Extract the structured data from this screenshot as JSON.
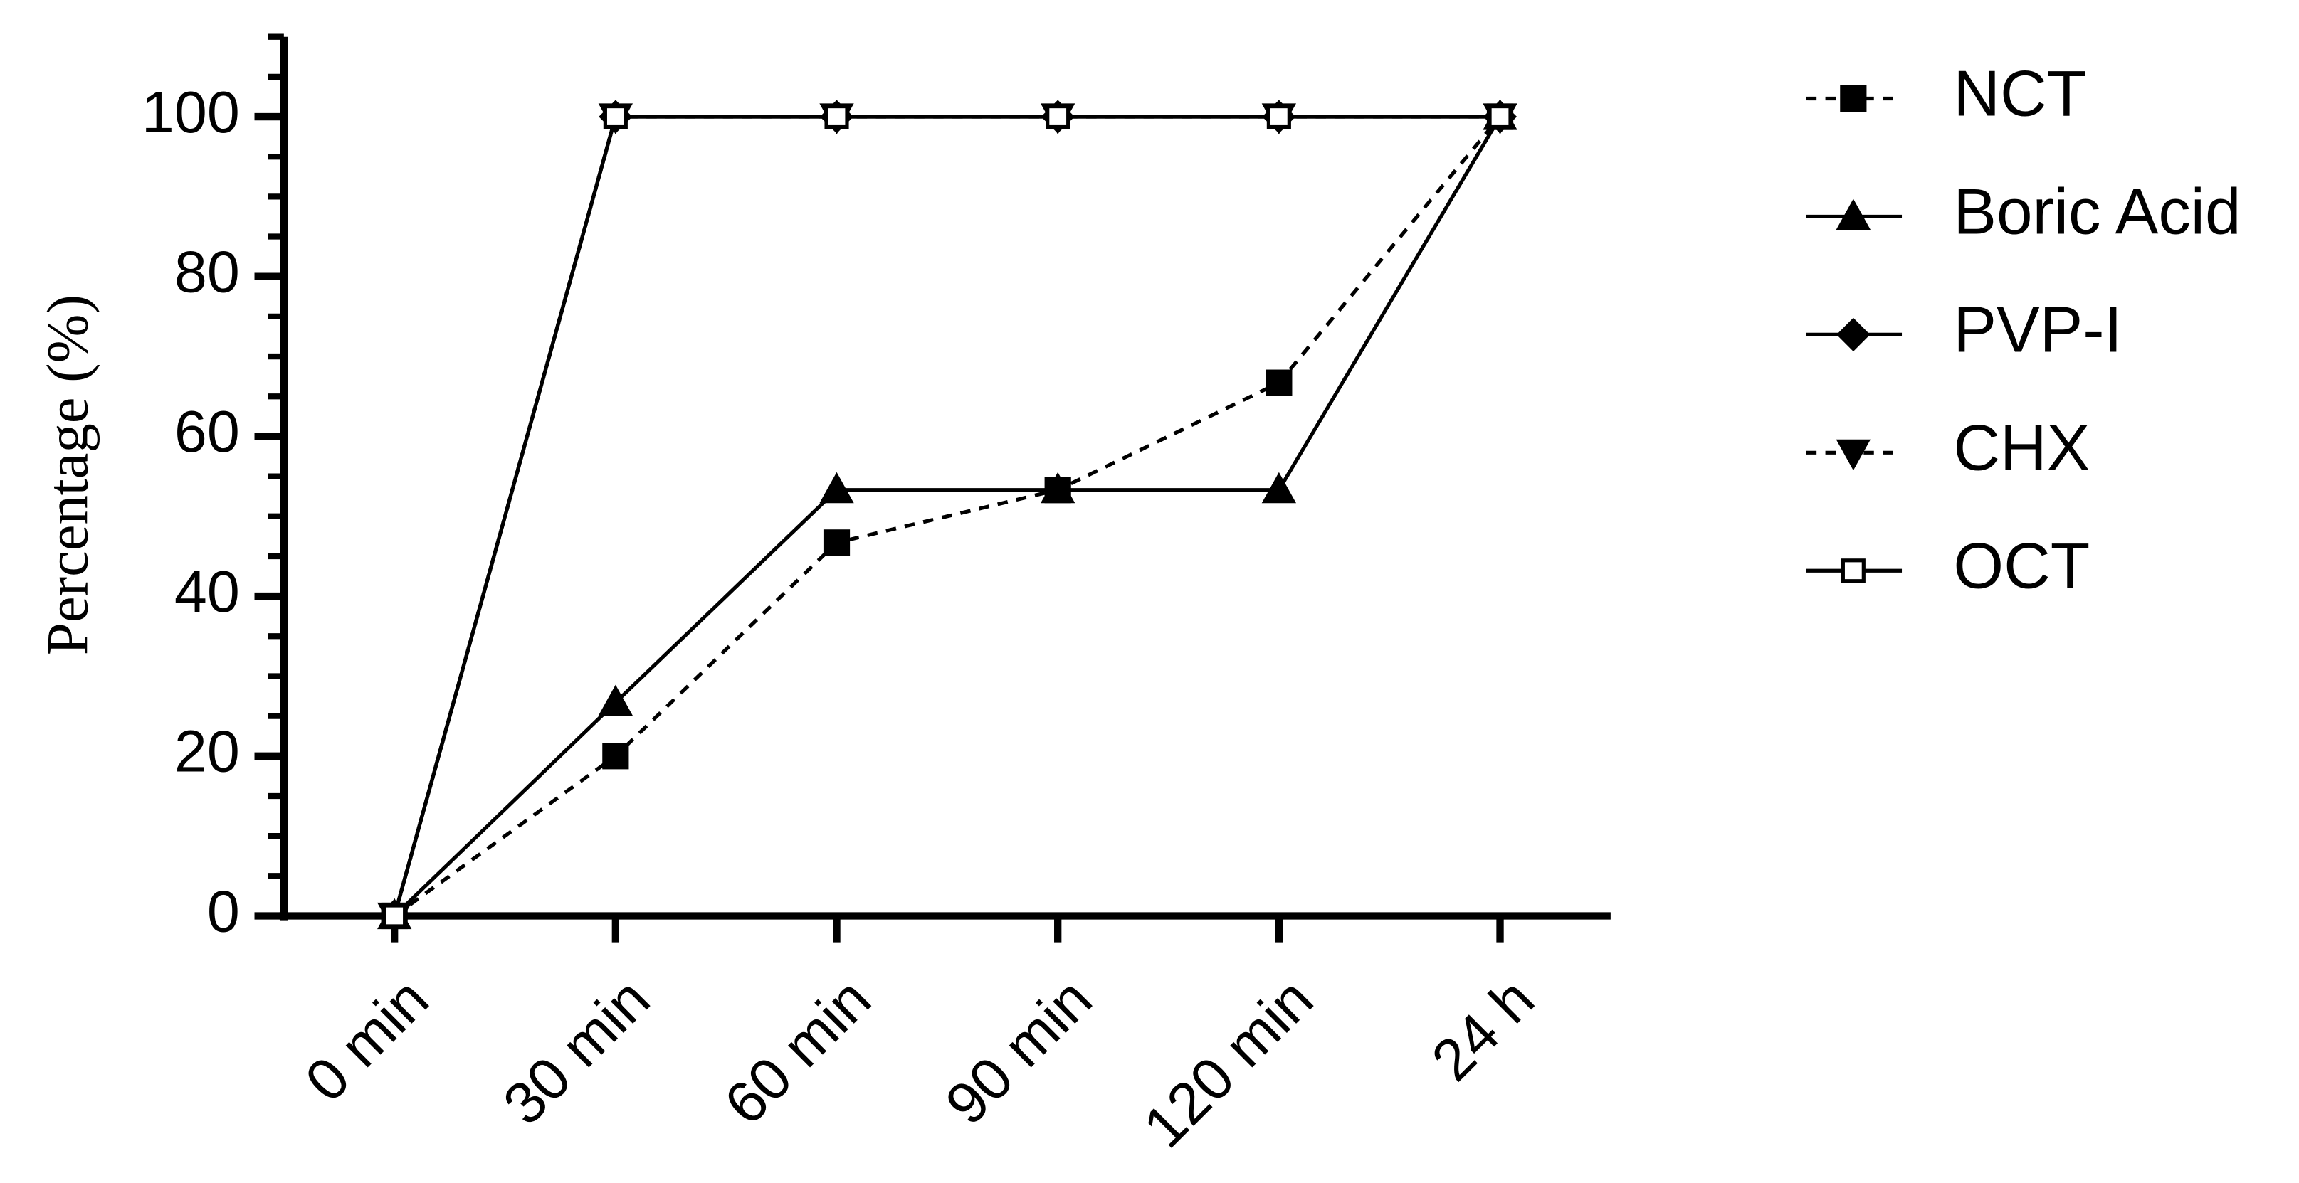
{
  "chart_data": {
    "type": "line",
    "y_label": "Percentage (%)",
    "categories": [
      "0 min",
      "30 min",
      "60 min",
      "90 min",
      "120 min",
      "24 h"
    ],
    "series": [
      {
        "name": "NCT",
        "color": "#000000",
        "dash": true,
        "marker": "square",
        "values": [
          0,
          20,
          46.7,
          53.3,
          66.7,
          100
        ]
      },
      {
        "name": "Boric Acid",
        "color": "#000000",
        "dash": false,
        "marker": "triangle",
        "values": [
          0,
          26.7,
          53.3,
          53.3,
          53.3,
          100
        ]
      },
      {
        "name": "PVP-I",
        "color": "#000000",
        "dash": false,
        "marker": "diamond",
        "values": [
          0,
          100,
          100,
          100,
          100,
          100
        ]
      },
      {
        "name": "CHX",
        "color": "#000000",
        "dash": true,
        "marker": "triangle-down",
        "values": [
          0,
          100,
          100,
          100,
          100,
          100
        ]
      },
      {
        "name": "OCT",
        "color": "#000000",
        "dash": false,
        "marker": "open-square",
        "values": [
          0,
          100,
          100,
          100,
          100,
          100
        ]
      }
    ],
    "ylim": [
      0,
      110
    ],
    "yticks": [
      0,
      20,
      40,
      60,
      80,
      100
    ],
    "yminorticks": [
      5,
      10,
      15,
      25,
      30,
      35,
      45,
      50,
      55,
      65,
      70,
      75,
      85,
      90,
      95,
      105,
      110
    ],
    "legend": "right"
  }
}
